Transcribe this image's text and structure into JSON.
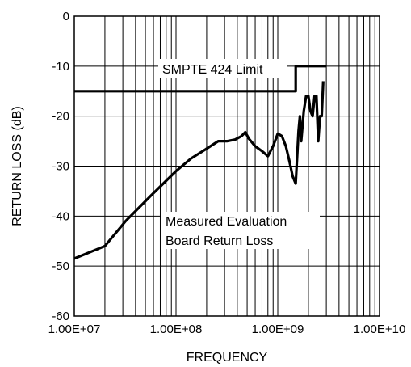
{
  "chart_data": {
    "type": "line",
    "title": "",
    "xlabel": "FREQUENCY",
    "ylabel": "RETURN LOSS (dB)",
    "x_scale": "log",
    "xlim": [
      10000000.0,
      10000000000.0
    ],
    "ylim": [
      -60,
      0
    ],
    "x_ticks": [
      10000000.0,
      100000000.0,
      1000000000.0,
      10000000000.0
    ],
    "x_tick_labels": [
      "1.00E+07",
      "1.00E+08",
      "1.00E+09",
      "1.00E+10"
    ],
    "y_ticks": [
      0,
      -10,
      -20,
      -30,
      -40,
      -50,
      -60
    ],
    "y_tick_labels": [
      "0",
      "-10",
      "-20",
      "-30",
      "-40",
      "-50",
      "-60"
    ],
    "grid": true,
    "legend": "none",
    "line_color": "#000000",
    "annotations": {
      "limit_label": "SMPTE 424 Limit",
      "measured_label_line1": "Measured Evaluation",
      "measured_label_line2": "Board Return Loss"
    },
    "series": [
      {
        "x": [
          10000000.0,
          1500000000.0,
          1500000000.0,
          3000000000.0
        ],
        "y": [
          -15,
          -15,
          -10,
          -10
        ]
      },
      {
        "x": [
          10000000.0,
          20000000.0,
          32000000.0,
          56000000.0,
          100000000.0,
          140000000.0,
          200000000.0,
          260000000.0,
          320000000.0,
          380000000.0,
          440000000.0,
          480000000.0,
          520000000.0,
          600000000.0,
          700000000.0,
          800000000.0,
          900000000.0,
          1000000000.0,
          1100000000.0,
          1200000000.0,
          1300000000.0,
          1400000000.0,
          1500000000.0,
          1600000000.0,
          1650000000.0,
          1700000000.0,
          1800000000.0,
          1900000000.0,
          2000000000.0,
          2100000000.0,
          2200000000.0,
          2300000000.0,
          2400000000.0,
          2500000000.0,
          2600000000.0,
          2700000000.0,
          2800000000.0
        ],
        "y": [
          -48.5,
          -46,
          -41,
          -36,
          -31,
          -28.5,
          -26.5,
          -25,
          -25,
          -24.7,
          -24,
          -23.2,
          -24.5,
          -26,
          -27,
          -28,
          -26,
          -23.5,
          -24,
          -26,
          -29,
          -32,
          -33.5,
          -23,
          -20,
          -25,
          -19,
          -16,
          -16,
          -19,
          -20,
          -16,
          -16,
          -25,
          -20,
          -20,
          -13
        ]
      }
    ]
  }
}
